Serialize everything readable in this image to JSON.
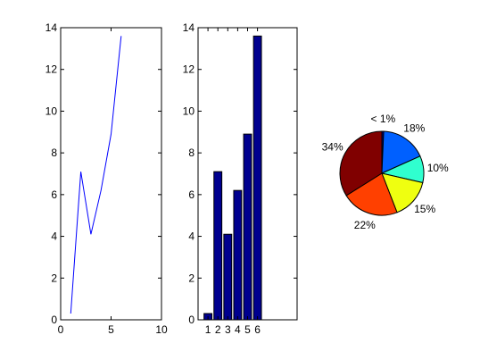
{
  "chart_data": [
    {
      "type": "line",
      "x": [
        1,
        2,
        3,
        4,
        5,
        6
      ],
      "y": [
        0.3,
        7.1,
        4.1,
        6.2,
        8.9,
        13.6
      ],
      "xlim": [
        0,
        10
      ],
      "ylim": [
        0,
        14
      ],
      "xticks": [
        "0",
        "5",
        "10"
      ],
      "yticks": [
        "0",
        "2",
        "4",
        "6",
        "8",
        "10",
        "12",
        "14"
      ],
      "color": "#0000ff",
      "grid": false
    },
    {
      "type": "bar",
      "categories": [
        "1",
        "2",
        "3",
        "4",
        "5",
        "6"
      ],
      "values": [
        0.3,
        7.1,
        4.1,
        6.2,
        8.9,
        13.6
      ],
      "ylim": [
        0,
        14
      ],
      "yticks": [
        "0",
        "2",
        "4",
        "6",
        "8",
        "10",
        "12",
        "14"
      ],
      "bar_color": "#00008f",
      "grid": false
    },
    {
      "type": "pie",
      "slices": [
        {
          "label": "< 1%",
          "value": 0.7,
          "color": "#00008f"
        },
        {
          "label": "18%",
          "value": 17.6,
          "color": "#0060ff"
        },
        {
          "label": "10%",
          "value": 10.3,
          "color": "#30ffcf"
        },
        {
          "label": "15%",
          "value": 15.5,
          "color": "#efff10"
        },
        {
          "label": "22%",
          "value": 22.0,
          "color": "#ff4000"
        },
        {
          "label": "34%",
          "value": 33.9,
          "color": "#800000"
        }
      ]
    }
  ]
}
